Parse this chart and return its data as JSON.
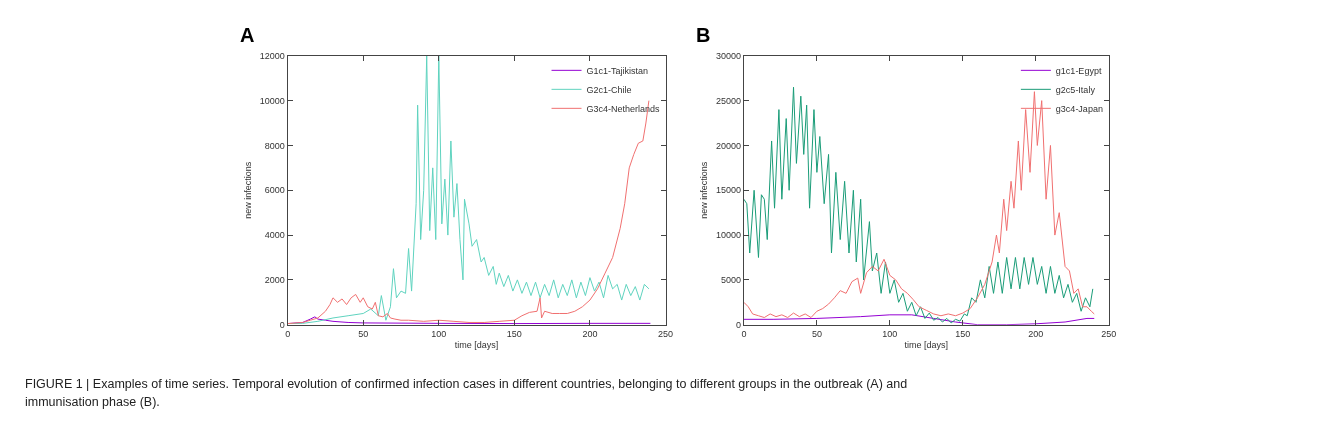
{
  "chart_data": [
    {
      "type": "line",
      "title": "A",
      "xlabel": "time [days]",
      "ylabel": "new infections",
      "xlim": [
        0,
        250
      ],
      "xticks": [
        0,
        50,
        100,
        150,
        200,
        250
      ],
      "ylim": [
        0,
        12000
      ],
      "yticks": [
        0,
        2000,
        4000,
        6000,
        8000,
        10000,
        12000
      ],
      "legend": "top right",
      "marker": "none",
      "line_style": "solid",
      "annotations": [
        "FIGURE 1 | Examples of time series. Temporal evolution of confirmed infection cases in different countries, belonging to different groups in the outbreak (A) and",
        "immunisation phase (B)."
      ],
      "series": [
        {
          "name": "G1c1-Tajikistan",
          "color": "#9400d3",
          "x": [
            0,
            10,
            15,
            18,
            20,
            25,
            30,
            40,
            50,
            100,
            150,
            200,
            240
          ],
          "values": [
            50,
            100,
            250,
            350,
            250,
            200,
            150,
            100,
            80,
            60,
            50,
            60,
            60
          ]
        },
        {
          "name": "G2c1-Chile",
          "color": "#5fd3bf",
          "x": [
            0,
            10,
            20,
            30,
            40,
            50,
            55,
            60,
            62,
            65,
            68,
            70,
            72,
            75,
            78,
            80,
            82,
            85,
            86,
            88,
            90,
            92,
            94,
            96,
            98,
            100,
            102,
            104,
            106,
            108,
            110,
            112,
            114,
            116,
            117,
            120,
            122,
            125,
            128,
            130,
            133,
            136,
            138,
            140,
            143,
            146,
            149,
            152,
            155,
            158,
            161,
            164,
            167,
            170,
            173,
            176,
            179,
            182,
            185,
            188,
            191,
            194,
            197,
            200,
            203,
            206,
            209,
            212,
            215,
            218,
            221,
            224,
            227,
            230,
            233,
            236,
            239
          ],
          "values": [
            50,
            60,
            150,
            300,
            400,
            500,
            700,
            400,
            1300,
            200,
            800,
            2500,
            1200,
            1500,
            1400,
            3400,
            1500,
            5400,
            9800,
            3800,
            6000,
            12000,
            4200,
            7000,
            3800,
            12000,
            4500,
            6500,
            4000,
            8200,
            4800,
            6300,
            3800,
            2000,
            5600,
            4500,
            3500,
            3800,
            2800,
            3000,
            2200,
            2600,
            1800,
            2300,
            1700,
            2200,
            1500,
            2000,
            1400,
            1900,
            1300,
            1900,
            1200,
            1800,
            1300,
            2000,
            1200,
            1800,
            1300,
            2000,
            1200,
            1900,
            1300,
            2100,
            1500,
            1900,
            1200,
            2200,
            1600,
            1800,
            1100,
            1800,
            1300,
            1700,
            1100,
            1800,
            1600
          ]
        },
        {
          "name": "G3c4-Netherlands",
          "color": "#f07070",
          "x": [
            0,
            10,
            15,
            20,
            25,
            28,
            30,
            33,
            36,
            39,
            42,
            45,
            48,
            50,
            53,
            56,
            58,
            60,
            63,
            66,
            68,
            71,
            75,
            80,
            90,
            100,
            110,
            120,
            130,
            140,
            150,
            155,
            160,
            165,
            167,
            168,
            170,
            175,
            180,
            185,
            190,
            195,
            200,
            205,
            210,
            215,
            220,
            223,
            226,
            229,
            232,
            235,
            237,
            239
          ],
          "values": [
            50,
            100,
            200,
            300,
            600,
            900,
            1200,
            1000,
            1150,
            900,
            1200,
            1350,
            1000,
            1200,
            800,
            700,
            1000,
            400,
            350,
            500,
            300,
            250,
            200,
            200,
            150,
            200,
            150,
            100,
            100,
            150,
            200,
            400,
            550,
            600,
            1200,
            300,
            600,
            500,
            500,
            500,
            600,
            800,
            1100,
            1600,
            2300,
            3000,
            4300,
            5400,
            7000,
            7600,
            8100,
            8200,
            9000,
            10000
          ]
        }
      ]
    },
    {
      "type": "line",
      "title": "B",
      "xlabel": "time [days]",
      "ylabel": "new infections",
      "xlim": [
        0,
        250
      ],
      "xticks": [
        0,
        50,
        100,
        150,
        200,
        250
      ],
      "ylim": [
        0,
        30000
      ],
      "yticks": [
        0,
        5000,
        10000,
        15000,
        20000,
        25000,
        30000
      ],
      "legend": "top right",
      "marker": "none",
      "line_style": "solid",
      "series": [
        {
          "name": "g1c1-Egypt",
          "color": "#9400d3",
          "x": [
            0,
            20,
            50,
            80,
            100,
            115,
            130,
            145,
            160,
            180,
            200,
            220,
            235,
            240
          ],
          "values": [
            600,
            600,
            700,
            900,
            1100,
            1100,
            700,
            300,
            0,
            0,
            100,
            300,
            700,
            700
          ]
        },
        {
          "name": "g2c5-Italy",
          "color": "#1a9c78",
          "x": [
            0,
            2,
            4,
            7,
            10,
            12,
            14,
            16,
            19,
            21,
            24,
            26,
            29,
            31,
            34,
            36,
            39,
            41,
            43,
            45,
            48,
            50,
            52,
            55,
            58,
            60,
            63,
            66,
            69,
            72,
            75,
            77,
            80,
            82,
            86,
            88,
            91,
            94,
            97,
            100,
            103,
            106,
            109,
            112,
            115,
            118,
            121,
            124,
            127,
            130,
            133,
            136,
            139,
            142,
            145,
            148,
            151,
            153,
            156,
            159,
            162,
            165,
            168,
            171,
            174,
            177,
            180,
            183,
            186,
            189,
            192,
            195,
            198,
            201,
            204,
            207,
            210,
            213,
            216,
            219,
            222,
            225,
            228,
            231,
            234,
            237,
            239
          ],
          "values": [
            14000,
            13500,
            8000,
            15000,
            7500,
            14500,
            14000,
            9500,
            20500,
            13000,
            24000,
            14000,
            23000,
            15000,
            26500,
            18000,
            25500,
            19000,
            24500,
            13000,
            24000,
            17000,
            21000,
            13500,
            19000,
            8000,
            17000,
            9500,
            16000,
            8000,
            15000,
            7000,
            14000,
            5000,
            11500,
            6000,
            8000,
            3500,
            7000,
            3500,
            5000,
            2500,
            3500,
            1500,
            2500,
            1000,
            2000,
            700,
            1300,
            500,
            800,
            300,
            700,
            200,
            600,
            400,
            1200,
            1000,
            3000,
            2500,
            5000,
            3000,
            6500,
            3500,
            7000,
            3500,
            7500,
            4000,
            7500,
            4000,
            7500,
            4500,
            7500,
            4500,
            6500,
            3500,
            6500,
            3500,
            5500,
            3000,
            4500,
            2500,
            3500,
            1500,
            3000,
            2000,
            4000
          ]
        },
        {
          "name": "g3c4-Japan",
          "color": "#f07070",
          "x": [
            0,
            3,
            6,
            10,
            14,
            18,
            22,
            26,
            30,
            34,
            38,
            42,
            46,
            50,
            54,
            58,
            62,
            66,
            70,
            74,
            78,
            80,
            84,
            88,
            92,
            96,
            100,
            104,
            108,
            112,
            116,
            120,
            125,
            130,
            135,
            140,
            145,
            150,
            155,
            160,
            165,
            170,
            173,
            175,
            178,
            180,
            183,
            185,
            188,
            190,
            193,
            196,
            199,
            201,
            204,
            207,
            210,
            213,
            216,
            220,
            223,
            226,
            229,
            232,
            235,
            238,
            240
          ],
          "values": [
            2500,
            2000,
            1200,
            1000,
            800,
            1200,
            900,
            1100,
            800,
            1300,
            900,
            1200,
            800,
            1500,
            1800,
            2300,
            3000,
            3800,
            3500,
            4800,
            5200,
            3500,
            5800,
            6500,
            6000,
            7300,
            5500,
            5000,
            4000,
            3500,
            2800,
            2000,
            1600,
            1200,
            1000,
            1200,
            1000,
            1300,
            1800,
            3000,
            4500,
            7000,
            10000,
            8000,
            14000,
            10500,
            16000,
            13000,
            20500,
            15000,
            24000,
            17000,
            26000,
            20000,
            25000,
            14000,
            20000,
            10000,
            12500,
            6500,
            6000,
            3500,
            4000,
            2000,
            2000,
            1500,
            1200
          ]
        }
      ]
    }
  ]
}
